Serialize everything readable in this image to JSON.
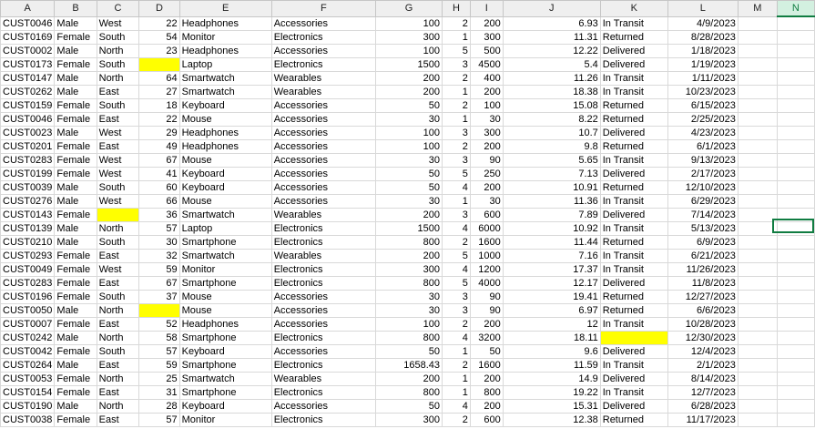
{
  "columns": [
    "A",
    "B",
    "C",
    "D",
    "E",
    "F",
    "G",
    "H",
    "I",
    "J",
    "K",
    "L",
    "M",
    "N"
  ],
  "selected_column": "N",
  "highlight_color": "#ffff00",
  "selection_color": "#107c41",
  "rows": [
    [
      "CUST0046",
      "Male",
      "West",
      "22",
      "Headphones",
      "Accessories",
      "100",
      "2",
      "200",
      "6.93",
      "In Transit",
      "4/9/2023"
    ],
    [
      "CUST0169",
      "Female",
      "South",
      "54",
      "Monitor",
      "Electronics",
      "300",
      "1",
      "300",
      "11.31",
      "Returned",
      "8/28/2023"
    ],
    [
      "CUST0002",
      "Male",
      "North",
      "23",
      "Headphones",
      "Accessories",
      "100",
      "5",
      "500",
      "12.22",
      "Delivered",
      "1/18/2023"
    ],
    [
      "CUST0173",
      "Female",
      "South",
      "",
      "Laptop",
      "Electronics",
      "1500",
      "3",
      "4500",
      "5.4",
      "Delivered",
      "1/19/2023"
    ],
    [
      "CUST0147",
      "Male",
      "North",
      "64",
      "Smartwatch",
      "Wearables",
      "200",
      "2",
      "400",
      "11.26",
      "In Transit",
      "1/11/2023"
    ],
    [
      "CUST0262",
      "Male",
      "East",
      "27",
      "Smartwatch",
      "Wearables",
      "200",
      "1",
      "200",
      "18.38",
      "In Transit",
      "10/23/2023"
    ],
    [
      "CUST0159",
      "Female",
      "South",
      "18",
      "Keyboard",
      "Accessories",
      "50",
      "2",
      "100",
      "15.08",
      "Returned",
      "6/15/2023"
    ],
    [
      "CUST0046",
      "Female",
      "East",
      "22",
      "Mouse",
      "Accessories",
      "30",
      "1",
      "30",
      "8.22",
      "Returned",
      "2/25/2023"
    ],
    [
      "CUST0023",
      "Male",
      "West",
      "29",
      "Headphones",
      "Accessories",
      "100",
      "3",
      "300",
      "10.7",
      "Delivered",
      "4/23/2023"
    ],
    [
      "CUST0201",
      "Female",
      "East",
      "49",
      "Headphones",
      "Accessories",
      "100",
      "2",
      "200",
      "9.8",
      "Returned",
      "6/1/2023"
    ],
    [
      "CUST0283",
      "Female",
      "West",
      "67",
      "Mouse",
      "Accessories",
      "30",
      "3",
      "90",
      "5.65",
      "In Transit",
      "9/13/2023"
    ],
    [
      "CUST0199",
      "Female",
      "West",
      "41",
      "Keyboard",
      "Accessories",
      "50",
      "5",
      "250",
      "7.13",
      "Delivered",
      "2/17/2023"
    ],
    [
      "CUST0039",
      "Male",
      "South",
      "60",
      "Keyboard",
      "Accessories",
      "50",
      "4",
      "200",
      "10.91",
      "Returned",
      "12/10/2023"
    ],
    [
      "CUST0276",
      "Male",
      "West",
      "66",
      "Mouse",
      "Accessories",
      "30",
      "1",
      "30",
      "11.36",
      "In Transit",
      "6/29/2023"
    ],
    [
      "CUST0143",
      "Female",
      "",
      "36",
      "Smartwatch",
      "Wearables",
      "200",
      "3",
      "600",
      "7.89",
      "Delivered",
      "7/14/2023"
    ],
    [
      "CUST0139",
      "Male",
      "North",
      "57",
      "Laptop",
      "Electronics",
      "1500",
      "4",
      "6000",
      "10.92",
      "In Transit",
      "5/13/2023"
    ],
    [
      "CUST0210",
      "Male",
      "South",
      "30",
      "Smartphone",
      "Electronics",
      "800",
      "2",
      "1600",
      "11.44",
      "Returned",
      "6/9/2023"
    ],
    [
      "CUST0293",
      "Female",
      "East",
      "32",
      "Smartwatch",
      "Wearables",
      "200",
      "5",
      "1000",
      "7.16",
      "In Transit",
      "6/21/2023"
    ],
    [
      "CUST0049",
      "Female",
      "West",
      "59",
      "Monitor",
      "Electronics",
      "300",
      "4",
      "1200",
      "17.37",
      "In Transit",
      "11/26/2023"
    ],
    [
      "CUST0283",
      "Female",
      "East",
      "67",
      "Smartphone",
      "Electronics",
      "800",
      "5",
      "4000",
      "12.17",
      "Delivered",
      "11/8/2023"
    ],
    [
      "CUST0196",
      "Female",
      "South",
      "37",
      "Mouse",
      "Accessories",
      "30",
      "3",
      "90",
      "19.41",
      "Returned",
      "12/27/2023"
    ],
    [
      "CUST0050",
      "Male",
      "North",
      "",
      "Mouse",
      "Accessories",
      "30",
      "3",
      "90",
      "6.97",
      "Returned",
      "6/6/2023"
    ],
    [
      "CUST0007",
      "Female",
      "East",
      "52",
      "Headphones",
      "Accessories",
      "100",
      "2",
      "200",
      "12",
      "In Transit",
      "10/28/2023"
    ],
    [
      "CUST0242",
      "Male",
      "North",
      "58",
      "Smartphone",
      "Electronics",
      "800",
      "4",
      "3200",
      "18.11",
      "",
      "12/30/2023"
    ],
    [
      "CUST0042",
      "Female",
      "South",
      "57",
      "Keyboard",
      "Accessories",
      "50",
      "1",
      "50",
      "9.6",
      "Delivered",
      "12/4/2023"
    ],
    [
      "CUST0264",
      "Male",
      "East",
      "59",
      "Smartphone",
      "Electronics",
      "1658.43",
      "2",
      "1600",
      "11.59",
      "In Transit",
      "2/1/2023"
    ],
    [
      "CUST0053",
      "Female",
      "North",
      "25",
      "Smartwatch",
      "Wearables",
      "200",
      "1",
      "200",
      "14.9",
      "Delivered",
      "8/14/2023"
    ],
    [
      "CUST0154",
      "Female",
      "East",
      "31",
      "Smartphone",
      "Electronics",
      "800",
      "1",
      "800",
      "19.22",
      "In Transit",
      "12/7/2023"
    ],
    [
      "CUST0190",
      "Male",
      "North",
      "28",
      "Keyboard",
      "Accessories",
      "50",
      "4",
      "200",
      "15.31",
      "Delivered",
      "6/28/2023"
    ],
    [
      "CUST0038",
      "Female",
      "East",
      "57",
      "Monitor",
      "Electronics",
      "300",
      "2",
      "600",
      "12.38",
      "Returned",
      "11/17/2023"
    ]
  ],
  "highlighted_cells": [
    [
      3,
      3
    ],
    [
      14,
      2
    ],
    [
      21,
      3
    ],
    [
      23,
      10
    ]
  ],
  "highlighted_column_d_partial_last_row": true
}
